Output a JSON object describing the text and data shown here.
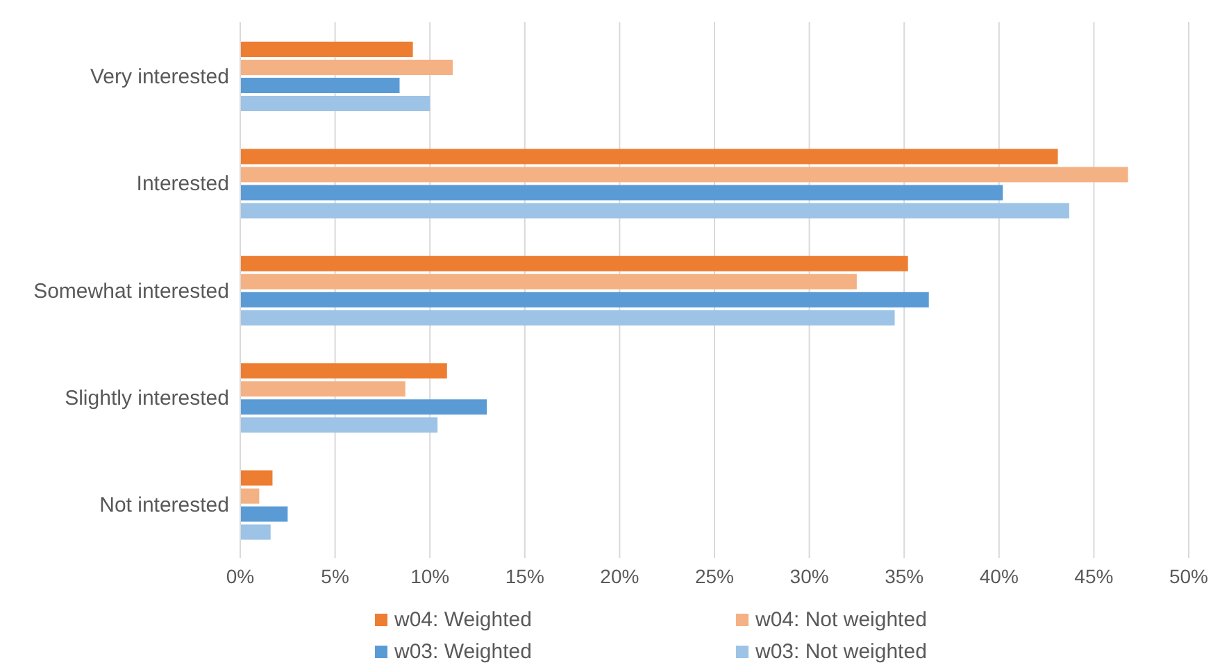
{
  "chart_data": {
    "type": "bar",
    "orientation": "horizontal",
    "categories": [
      "Very interested",
      "Interested",
      "Somewhat interested",
      "Slightly interested",
      "Not interested"
    ],
    "series": [
      {
        "name": "w04: Weighted",
        "color": "#ed7d31",
        "values": [
          9.1,
          43.1,
          35.2,
          10.9,
          1.7
        ]
      },
      {
        "name": "w04: Not weighted",
        "color": "#f4b183",
        "values": [
          11.2,
          46.8,
          32.5,
          8.7,
          1.0
        ]
      },
      {
        "name": "w03: Weighted",
        "color": "#5b9bd5",
        "values": [
          8.4,
          40.2,
          36.3,
          13.0,
          2.5
        ]
      },
      {
        "name": "w03: Not weighted",
        "color": "#9dc3e6",
        "values": [
          10.0,
          43.7,
          34.5,
          10.4,
          1.6
        ]
      }
    ],
    "xlim": [
      0,
      50
    ],
    "xticks": [
      {
        "value": 0,
        "label": "0%"
      },
      {
        "value": 5,
        "label": "5%"
      },
      {
        "value": 10,
        "label": "10%"
      },
      {
        "value": 15,
        "label": "15%"
      },
      {
        "value": 20,
        "label": "20%"
      },
      {
        "value": 25,
        "label": "25%"
      },
      {
        "value": 30,
        "label": "30%"
      },
      {
        "value": 35,
        "label": "35%"
      },
      {
        "value": 40,
        "label": "40%"
      },
      {
        "value": 45,
        "label": "45%"
      },
      {
        "value": 50,
        "label": "50%"
      }
    ],
    "grid": "x",
    "legend": "bottom"
  }
}
